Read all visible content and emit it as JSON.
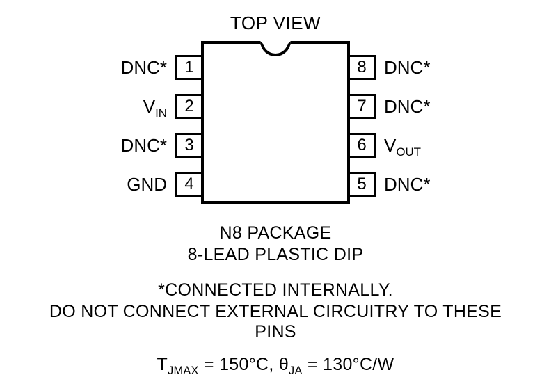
{
  "title": "TOP VIEW",
  "package_line1": "N8 PACKAGE",
  "package_line2": "8-LEAD PLASTIC DIP",
  "note_line1": "*CONNECTED INTERNALLY.",
  "note_line2": "DO NOT CONNECT EXTERNAL CIRCUITRY TO THESE PINS",
  "thermal": {
    "tjmax": "150°C",
    "theta_ja": "130°C/W"
  },
  "pins": {
    "left": [
      {
        "num": "1",
        "label": "DNC*",
        "has_sub": false
      },
      {
        "num": "2",
        "label": "V",
        "sub": "IN",
        "has_sub": true
      },
      {
        "num": "3",
        "label": "DNC*",
        "has_sub": false
      },
      {
        "num": "4",
        "label": "GND",
        "has_sub": false
      }
    ],
    "right": [
      {
        "num": "8",
        "label": "DNC*",
        "has_sub": false
      },
      {
        "num": "7",
        "label": "DNC*",
        "has_sub": false
      },
      {
        "num": "6",
        "label": "V",
        "sub": "OUT",
        "has_sub": true
      },
      {
        "num": "5",
        "label": "DNC*",
        "has_sub": false
      }
    ]
  },
  "layout": {
    "pin_row_tops": [
      20,
      76,
      132,
      188
    ]
  },
  "colors": {
    "stroke": "#000000",
    "background": "#ffffff"
  }
}
